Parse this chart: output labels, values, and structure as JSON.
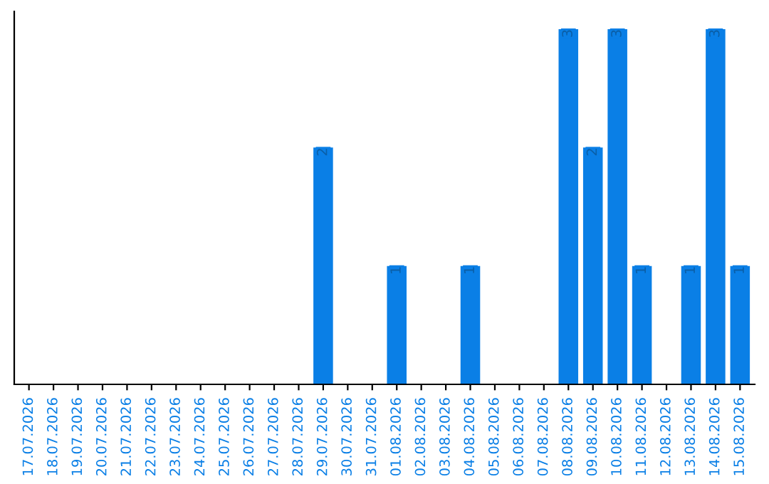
{
  "chart_data": {
    "type": "bar",
    "categories": [
      "17.07.2026",
      "18.07.2026",
      "19.07.2026",
      "20.07.2026",
      "21.07.2026",
      "22.07.2026",
      "23.07.2026",
      "24.07.2026",
      "25.07.2026",
      "26.07.2026",
      "27.07.2026",
      "28.07.2026",
      "29.07.2026",
      "30.07.2026",
      "31.07.2026",
      "01.08.2026",
      "02.08.2026",
      "03.08.2026",
      "04.08.2026",
      "05.08.2026",
      "06.08.2026",
      "07.08.2026",
      "08.08.2026",
      "09.08.2026",
      "10.08.2026",
      "11.08.2026",
      "12.08.2026",
      "13.08.2026",
      "14.08.2026",
      "15.08.2026"
    ],
    "values": [
      null,
      null,
      null,
      null,
      null,
      null,
      null,
      null,
      null,
      null,
      null,
      null,
      2,
      null,
      null,
      1,
      null,
      null,
      1,
      null,
      null,
      null,
      3,
      2,
      3,
      1,
      null,
      1,
      3,
      1
    ],
    "color": "#0a7fe6",
    "data_labels": true
  }
}
